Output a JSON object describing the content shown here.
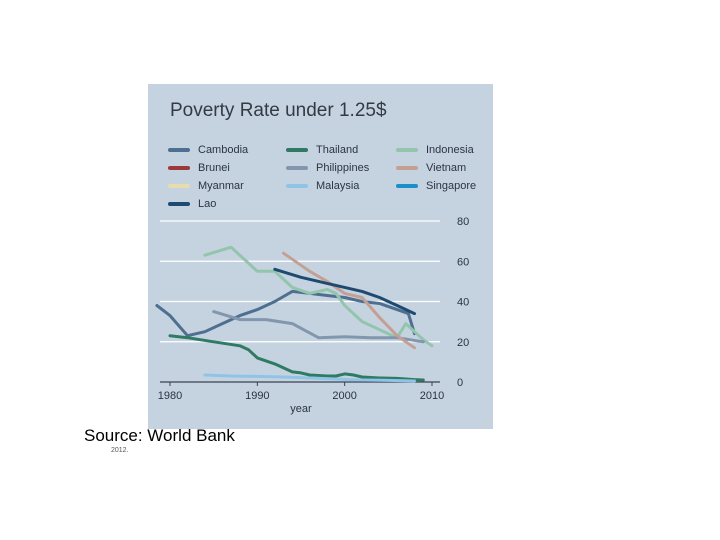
{
  "chart_data": {
    "type": "line",
    "title": "Poverty Rate under 1.25$",
    "xlabel": "year",
    "ylabel": "",
    "xlim": [
      1978,
      2010
    ],
    "ylim": [
      0,
      80
    ],
    "xticks": [
      1980,
      1990,
      2000,
      2010
    ],
    "yticks": [
      0,
      20,
      40,
      60,
      80
    ],
    "grid": true,
    "legend_position": "top",
    "series": [
      {
        "name": "Cambodia",
        "color": "#4e6f8f",
        "x": [
          1978.5,
          1980,
          1982,
          1984,
          1986,
          1988,
          1990,
          1992,
          1994,
          1996,
          1998,
          2000,
          2002,
          2004,
          2006,
          2007.3,
          2008
        ],
        "y": [
          38,
          33,
          23,
          25,
          29,
          33,
          36,
          40,
          45,
          44,
          43,
          42,
          40,
          39,
          36,
          34,
          24
        ]
      },
      {
        "name": "Thailand",
        "color": "#2f7a63",
        "x": [
          1980,
          1982,
          1985,
          1988,
          1989,
          1990,
          1992,
          1994,
          1995,
          1996,
          1998,
          1999,
          2000,
          2001,
          2002,
          2004,
          2006,
          2008,
          2009
        ],
        "y": [
          23,
          22,
          20,
          18,
          16,
          12,
          9,
          5,
          4.5,
          3.5,
          3,
          3,
          4,
          3.5,
          2.5,
          2,
          1.8,
          1.2,
          1
        ]
      },
      {
        "name": "Indonesia",
        "color": "#93c4ac",
        "x": [
          1984,
          1987,
          1990,
          1992,
          1994,
          1996,
          1998,
          1999,
          2000,
          2002,
          2004,
          2006,
          2007,
          2008,
          2009,
          2010
        ],
        "y": [
          63,
          67,
          55,
          55,
          47,
          44,
          46,
          44,
          38,
          30,
          26,
          22,
          29,
          25,
          21,
          18
        ]
      },
      {
        "name": "Brunei",
        "color": "#9b3a3a",
        "x": [],
        "y": []
      },
      {
        "name": "Philippines",
        "color": "#8296ad",
        "x": [
          1985,
          1988,
          1991,
          1994,
          1997,
          2000,
          2003,
          2006,
          2009
        ],
        "y": [
          35,
          31,
          31,
          29,
          22,
          22.5,
          22,
          22,
          20
        ]
      },
      {
        "name": "Vietnam",
        "color": "#c4a094",
        "x": [
          1993,
          1996,
          1998,
          2000,
          2002,
          2004,
          2006,
          2008
        ],
        "y": [
          64,
          55,
          50,
          44,
          42,
          32,
          23,
          17
        ]
      },
      {
        "name": "Myanmar",
        "color": "#e6dcae",
        "x": [],
        "y": []
      },
      {
        "name": "Malaysia",
        "color": "#8fc4e6",
        "x": [
          1984,
          1987,
          1990,
          1993,
          1996,
          1999,
          2002,
          2005,
          2008
        ],
        "y": [
          3.5,
          3,
          2.8,
          2.5,
          2,
          1.5,
          1,
          0.8,
          0.5
        ]
      },
      {
        "name": "Singapore",
        "color": "#1a8fc9",
        "x": [],
        "y": []
      },
      {
        "name": "Lao",
        "color": "#1f4a70",
        "x": [
          1992,
          1995,
          1998,
          2000,
          2002,
          2004,
          2006,
          2008
        ],
        "y": [
          56,
          52,
          49,
          47,
          45,
          42,
          38,
          34
        ]
      }
    ]
  },
  "source": {
    "text": "Source: World Bank",
    "small_text": "2012."
  }
}
